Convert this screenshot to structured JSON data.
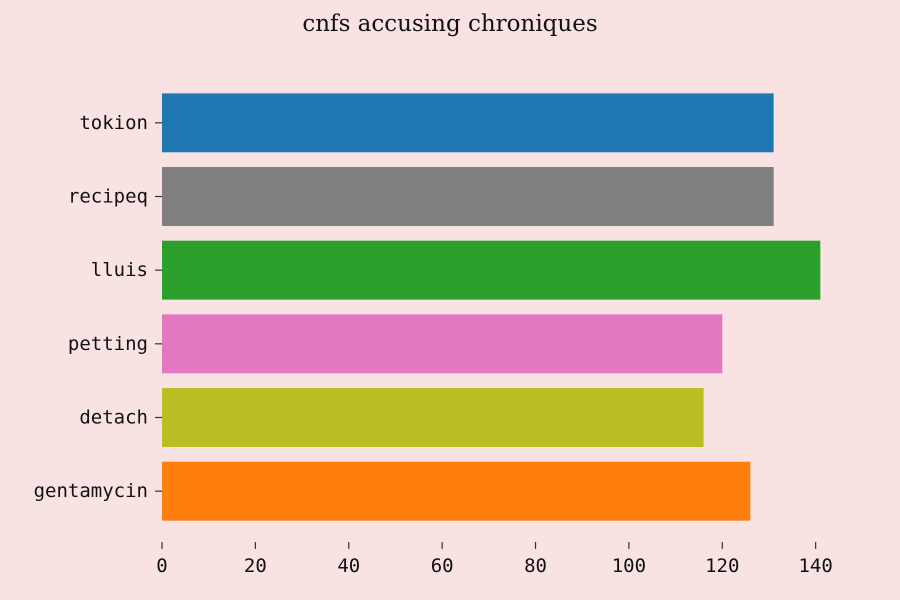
{
  "chart_data": {
    "type": "bar",
    "orientation": "horizontal",
    "title": "cnfs accusing chroniques",
    "xlabel": "",
    "ylabel": "",
    "categories": [
      "tokion",
      "recipeq",
      "lluis",
      "petting",
      "detach",
      "gentamycin"
    ],
    "values": [
      131,
      131,
      141,
      120,
      116,
      126
    ],
    "colors": [
      "#1f77b4",
      "#7f7f7f",
      "#2ca02c",
      "#e377c2",
      "#bcbd22",
      "#ff7f0e"
    ],
    "xlim": [
      0,
      145
    ],
    "xticks": [
      0,
      20,
      40,
      60,
      80,
      100,
      120,
      140
    ],
    "grid": false
  }
}
